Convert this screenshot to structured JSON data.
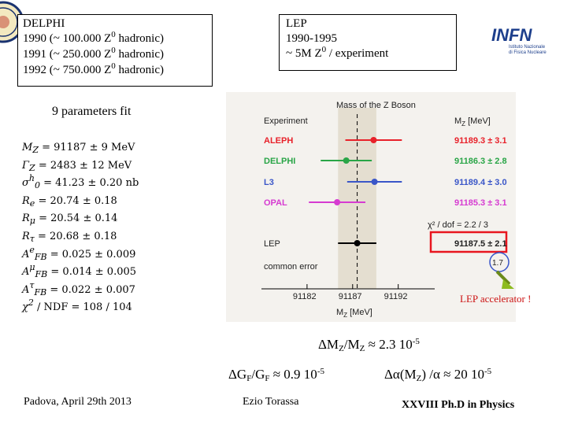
{
  "delphi_box": {
    "title": "DELPHI",
    "lines": [
      {
        "year": "1990",
        "text_pre": "(~ 100.000 Z",
        "sup": "0",
        "text_post": " hadronic)"
      },
      {
        "year": "1991",
        "text_pre": "(~ 250.000 Z",
        "sup": "0",
        "text_post": " hadronic)"
      },
      {
        "year": "1992",
        "text_pre": "(~ 750.000 Z",
        "sup": "0",
        "text_post": " hadronic)"
      }
    ]
  },
  "lep_box": {
    "title": "LEP",
    "years": "1990-1995",
    "line3_pre": "~ 5M Z",
    "line3_sup": "0",
    "line3_post": " / experiment"
  },
  "fit_title": "9 parameters fit",
  "parameters": [
    {
      "sym": "M",
      "sub": "Z",
      "sup": "",
      "value": "= 91187 ± 9  MeV"
    },
    {
      "sym": "Γ",
      "sub": "Z",
      "sup": "",
      "value": "= 2483 ± 12  MeV"
    },
    {
      "sym": "σ",
      "sub": "0",
      "sup": "h",
      "value": "= 41.23 ± 0.20  nb"
    },
    {
      "sym": "R",
      "sub": "e",
      "sup": "",
      "value": "= 20.74 ± 0.18"
    },
    {
      "sym": "R",
      "sub": "μ",
      "sup": "",
      "value": "= 20.54 ± 0.14"
    },
    {
      "sym": "R",
      "sub": "τ",
      "sup": "",
      "value": "= 20.68 ± 0.18"
    },
    {
      "sym": "A",
      "sub": "FB",
      "sup": "e",
      "value": "= 0.025 ± 0.009"
    },
    {
      "sym": "A",
      "sub": "FB",
      "sup": "μ",
      "value": "= 0.014 ± 0.005"
    },
    {
      "sym": "A",
      "sub": "FB",
      "sup": "τ",
      "value": "= 0.022 ± 0.007"
    },
    {
      "sym": "χ",
      "sub": "",
      "sup": "2",
      "value": "/ NDF = 108 / 104"
    }
  ],
  "chart_data": {
    "type": "scatter",
    "title": "Mass of the Z Boson",
    "header_left": "Experiment",
    "header_right": "M",
    "header_right_sub": "Z",
    "header_right_unit": "[MeV]",
    "xlabel": "M",
    "xlabel_sub": "Z",
    "xlabel_unit": "[MeV]",
    "xlim": [
      91177,
      91196
    ],
    "x_ticks": [
      91182,
      91187,
      91192
    ],
    "central_line": 91187.5,
    "band": [
      91185.4,
      91189.6
    ],
    "series": [
      {
        "name": "ALEPH",
        "value": 91189.3,
        "error": 3.1,
        "label": "91189.3 ± 3.1",
        "color": "#e8212a"
      },
      {
        "name": "DELPHI",
        "value": 91186.3,
        "error": 2.8,
        "label": "91186.3 ± 2.8",
        "color": "#29a547"
      },
      {
        "name": "L3",
        "value": 91189.4,
        "error": 3.0,
        "label": "91189.4 ± 3.0",
        "color": "#3a56c8"
      },
      {
        "name": "OPAL",
        "value": 91185.3,
        "error": 3.1,
        "label": "91185.3 ± 3.1",
        "color": "#d63bd1"
      }
    ],
    "chi2_label": "χ² / dof  =  2.2 / 3",
    "lep": {
      "name": "LEP",
      "value": 91187.5,
      "error": 2.1,
      "label": "91187.5 ± 2.1",
      "color": "#000000"
    },
    "common_error_label": "common error",
    "common_error_value": "1.7"
  },
  "lep_accelerator": "LEP accelerator !",
  "formulas": {
    "mz": {
      "pre": "ΔM",
      "sub1": "Z",
      "mid": "/M",
      "sub2": "Z",
      "post": " ≈ 2.3 10",
      "sup": "-5"
    },
    "gf": {
      "pre": "ΔG",
      "sub1": "F",
      "mid": "/G",
      "sub2": "F",
      "post": " ≈ 0.9 10",
      "sup": "-5"
    },
    "alpha": {
      "pre": "Δα(M",
      "sub1": "Z",
      "mid": ") /α ≈ 20 10",
      "sup": "-5"
    }
  },
  "footer": {
    "left": "Padova, April 29th 2013",
    "mid": "Ezio Torassa",
    "right": "XXVIII  Ph.D in Physics"
  },
  "logo": {
    "text": "INFN",
    "subtitle_1": "Istituto Nazionale",
    "subtitle_2": "di Fisica Nucleare",
    "color": "#1d3f8c"
  }
}
